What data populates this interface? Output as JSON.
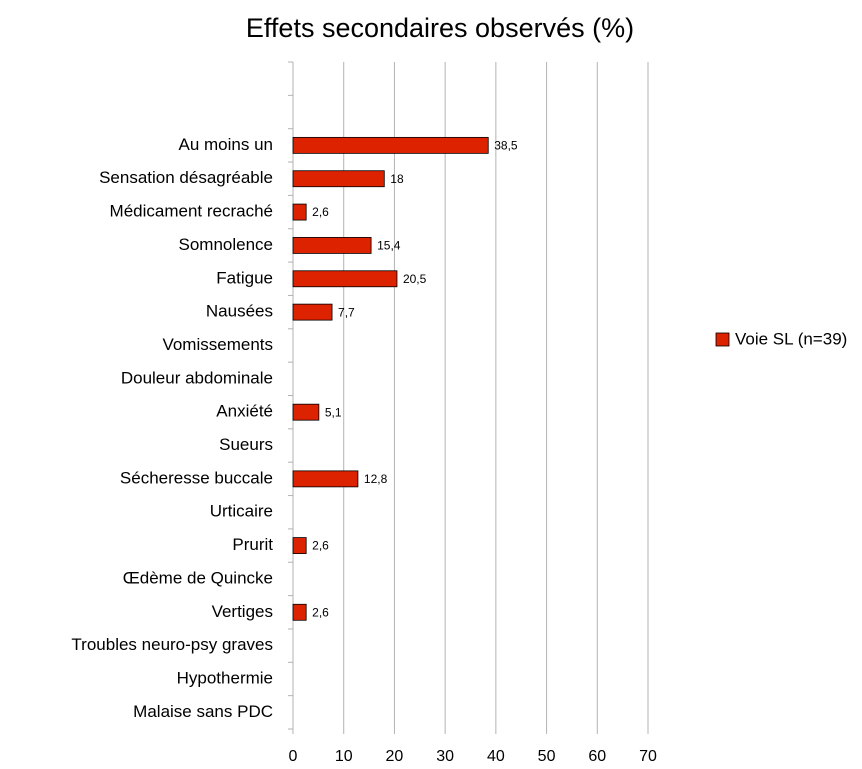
{
  "chart_data": {
    "type": "bar",
    "orientation": "horizontal",
    "title": "Effets secondaires observés (%)",
    "categories": [
      null,
      null,
      "Au moins un",
      "Sensation désagréable",
      "Médicament recraché",
      "Somnolence",
      "Fatigue",
      "Nausées",
      "Vomissements",
      "Douleur abdominale",
      "Anxiété",
      "Sueurs",
      "Sécheresse buccale",
      "Urticaire",
      "Prurit",
      "Œdème de Quincke",
      "Vertiges",
      "Troubles neuro-psy graves",
      "Hypothermie",
      "Malaise sans PDC"
    ],
    "series": [
      {
        "name": "Voie SL (n=39)",
        "color": "#dd2200",
        "values": [
          null,
          null,
          38.5,
          18,
          2.6,
          15.4,
          20.5,
          7.7,
          null,
          null,
          5.1,
          null,
          12.8,
          null,
          2.6,
          null,
          2.6,
          null,
          null,
          null
        ],
        "value_labels": [
          null,
          null,
          "38,5",
          "18",
          "2,6",
          "15,4",
          "20,5",
          "7,7",
          null,
          null,
          "5,1",
          null,
          "12,8",
          null,
          "2,6",
          null,
          "2,6",
          null,
          null,
          null
        ]
      }
    ],
    "xlim": [
      0,
      70
    ],
    "xticks": [
      0,
      10,
      20,
      30,
      40,
      50,
      60,
      70
    ],
    "grid": true,
    "legend": "right"
  }
}
